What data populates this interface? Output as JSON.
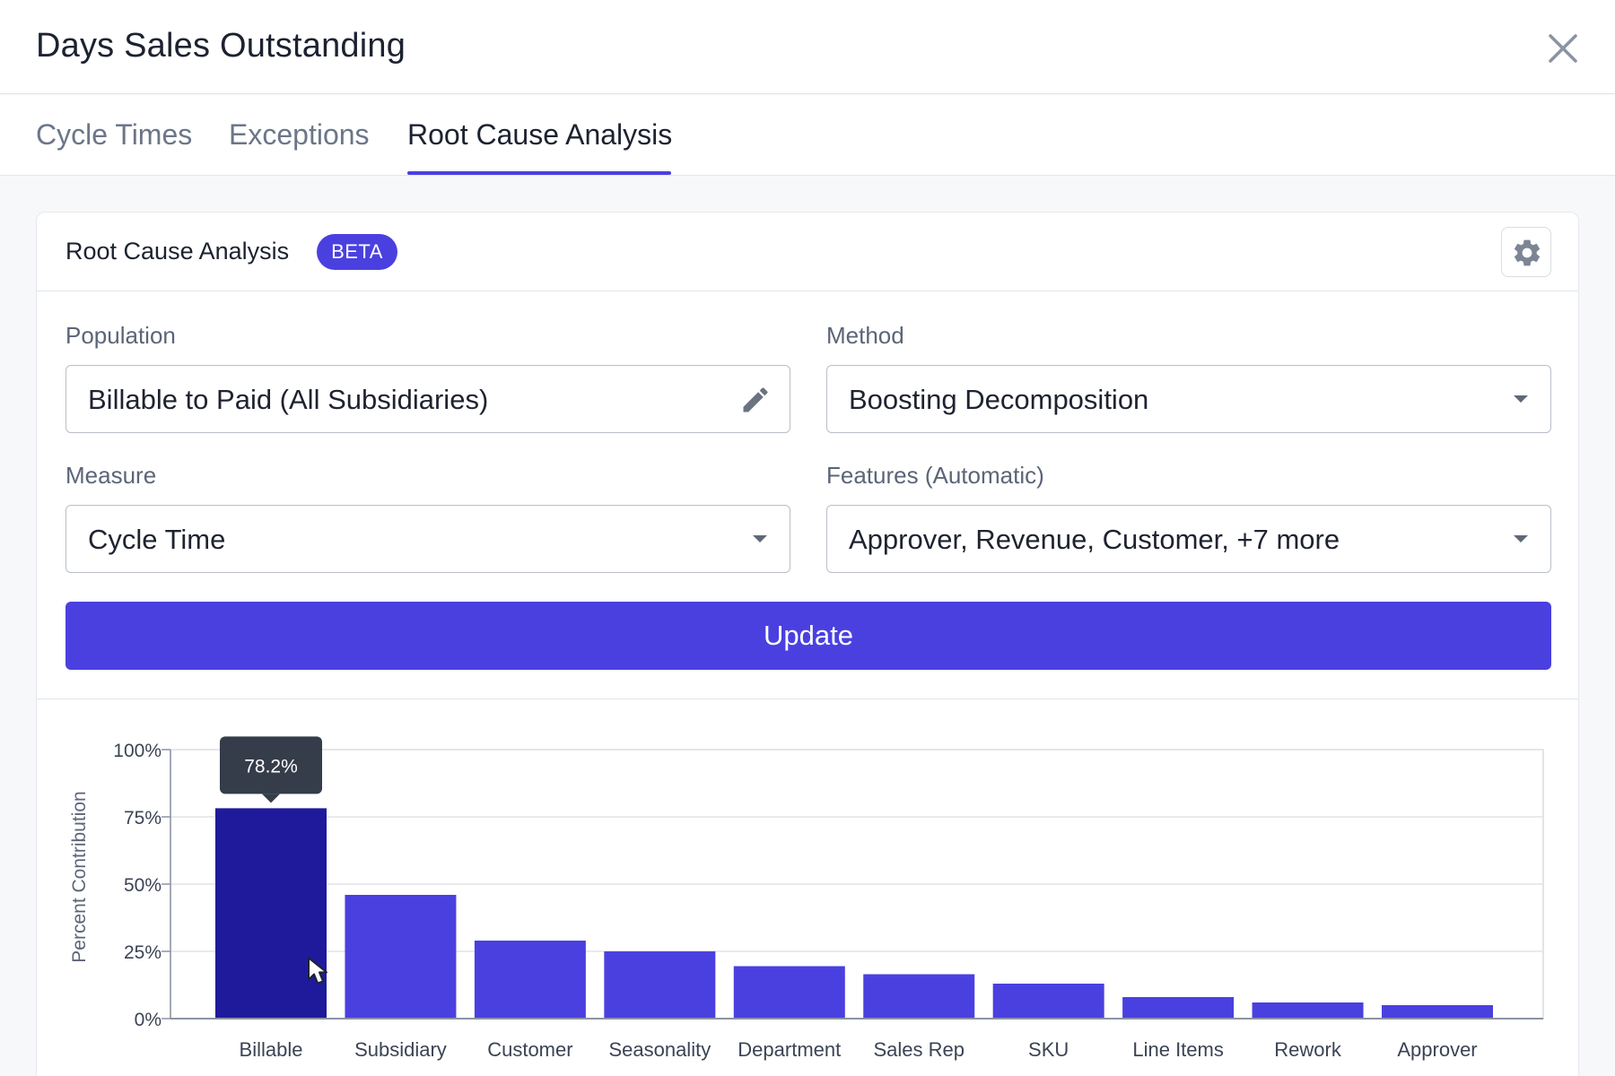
{
  "modal": {
    "title": "Days Sales Outstanding"
  },
  "tabs": [
    {
      "label": "Cycle Times",
      "active": false
    },
    {
      "label": "Exceptions",
      "active": false
    },
    {
      "label": "Root Cause Analysis",
      "active": true
    }
  ],
  "card": {
    "title": "Root Cause Analysis",
    "badge": "BETA"
  },
  "form": {
    "population": {
      "label": "Population",
      "value": "Billable to Paid (All Subsidiaries)",
      "icon": "pencil-icon"
    },
    "method": {
      "label": "Method",
      "value": "Boosting Decomposition",
      "icon": "caret-down-icon"
    },
    "measure": {
      "label": "Measure",
      "value": "Cycle Time",
      "icon": "caret-down-icon"
    },
    "features": {
      "label": "Features (Automatic)",
      "value": "Approver, Revenue, Customer, +7 more",
      "icon": "caret-down-icon"
    },
    "update_label": "Update"
  },
  "colors": {
    "accent": "#4a40e0",
    "bar_highlight": "#1f1a9c",
    "tooltip_bg": "#353c4a"
  },
  "chart_data": {
    "type": "bar",
    "ylabel": "Percent Contribution",
    "xlabel": "",
    "ylim": [
      0,
      100
    ],
    "yticks": [
      "0%",
      "25%",
      "50%",
      "75%",
      "100%"
    ],
    "grid": true,
    "categories": [
      "Billable",
      "Subsidiary",
      "Customer",
      "Seasonality",
      "Department",
      "Sales Rep",
      "SKU",
      "Line Items",
      "Rework",
      "Approver"
    ],
    "values": [
      78.2,
      46,
      29,
      25,
      19.5,
      16.5,
      13,
      8,
      6,
      5
    ],
    "highlighted_index": 0,
    "tooltip": "78.2%"
  }
}
